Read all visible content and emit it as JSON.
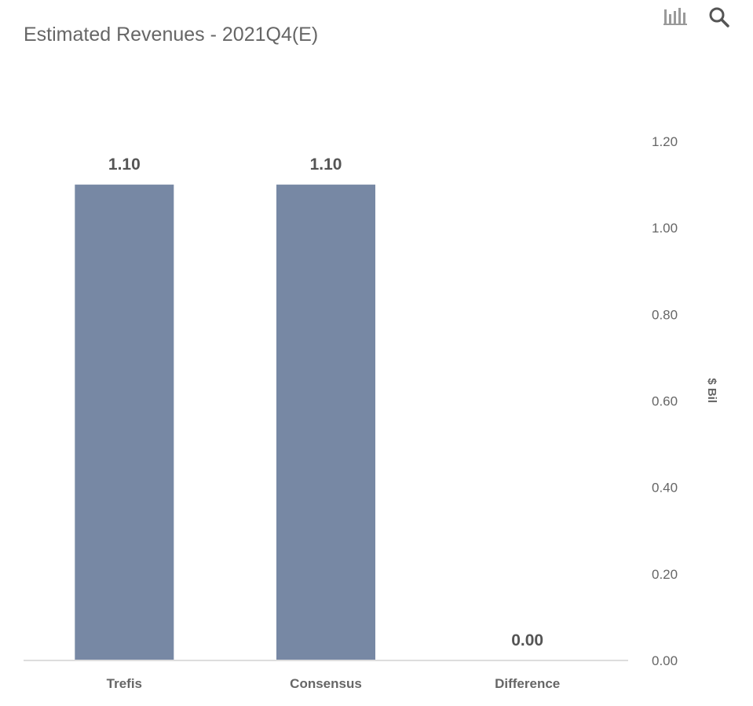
{
  "title": "Estimated Revenues - 2021Q4(E)",
  "toolbar": {
    "icons": [
      "bar-chart-icon",
      "search-icon"
    ]
  },
  "colors": {
    "bar": "#7788a4",
    "title": "#666666",
    "axis_text": "#666666",
    "baseline": "#dddddd",
    "data_label": "#555555"
  },
  "chart_data": {
    "type": "bar",
    "title": "Estimated Revenues - 2021Q4(E)",
    "categories": [
      "Trefis",
      "Consensus",
      "Difference"
    ],
    "values": [
      1.1,
      1.1,
      0.0
    ],
    "data_labels": [
      "1.10",
      "1.10",
      "0.00"
    ],
    "ylabel": "$ Bil",
    "ylim": [
      0,
      1.2
    ],
    "yticks": [
      "0.00",
      "0.20",
      "0.40",
      "0.60",
      "0.80",
      "1.00",
      "1.20"
    ],
    "y_axis_position": "right",
    "grid": false,
    "legend": "none"
  }
}
